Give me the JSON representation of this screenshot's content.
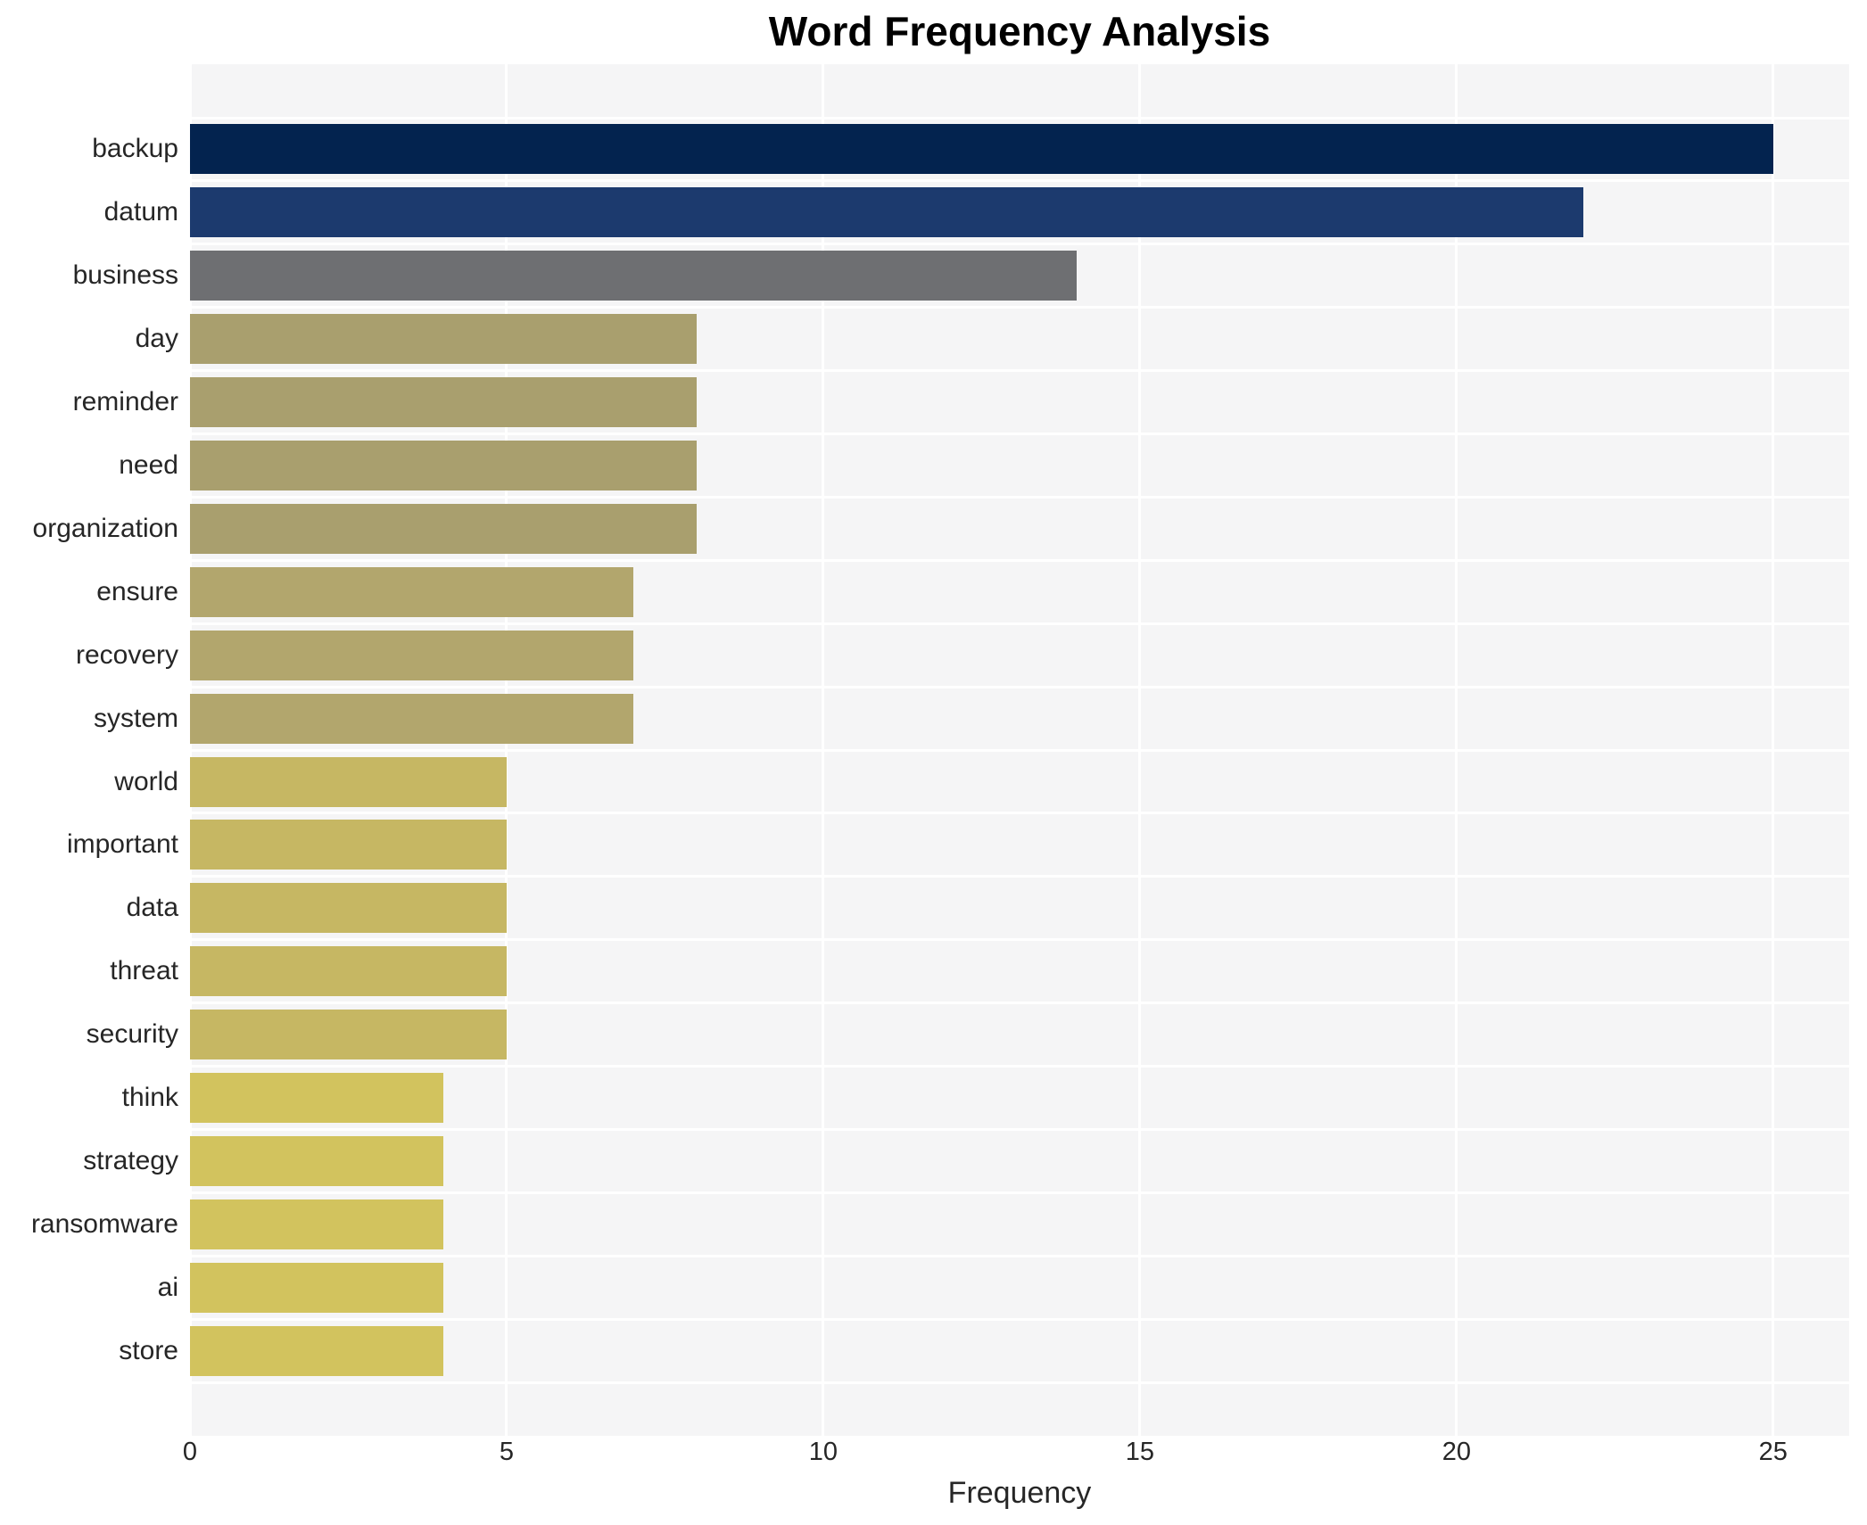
{
  "figure": {
    "background": "#ffffff",
    "plot_background": "#f5f5f6",
    "gridline_color": "#ffffff",
    "text_color": "#262626"
  },
  "chart_data": {
    "type": "bar",
    "orientation": "horizontal",
    "title": "Word Frequency Analysis",
    "xlabel": "Frequency",
    "ylabel": "",
    "categories": [
      "backup",
      "datum",
      "business",
      "day",
      "reminder",
      "need",
      "organization",
      "ensure",
      "recovery",
      "system",
      "world",
      "important",
      "data",
      "threat",
      "security",
      "think",
      "strategy",
      "ransomware",
      "ai",
      "store"
    ],
    "values": [
      25,
      22,
      14,
      8,
      8,
      8,
      8,
      7,
      7,
      7,
      5,
      5,
      5,
      5,
      5,
      4,
      4,
      4,
      4,
      4
    ],
    "bar_colors": [
      "#03234f",
      "#1c3a6e",
      "#6e6f72",
      "#a99f6e",
      "#a99f6e",
      "#a99f6e",
      "#a99f6e",
      "#b2a66d",
      "#b2a66d",
      "#b2a66d",
      "#c6b763",
      "#c6b763",
      "#c6b763",
      "#c6b763",
      "#c6b763",
      "#d2c35e",
      "#d2c35e",
      "#d2c35e",
      "#d2c35e",
      "#d2c35e"
    ],
    "xlim": [
      0,
      26.2
    ],
    "xticks": [
      0,
      5,
      10,
      15,
      20,
      25
    ],
    "grid": true,
    "legend_position": "none"
  }
}
